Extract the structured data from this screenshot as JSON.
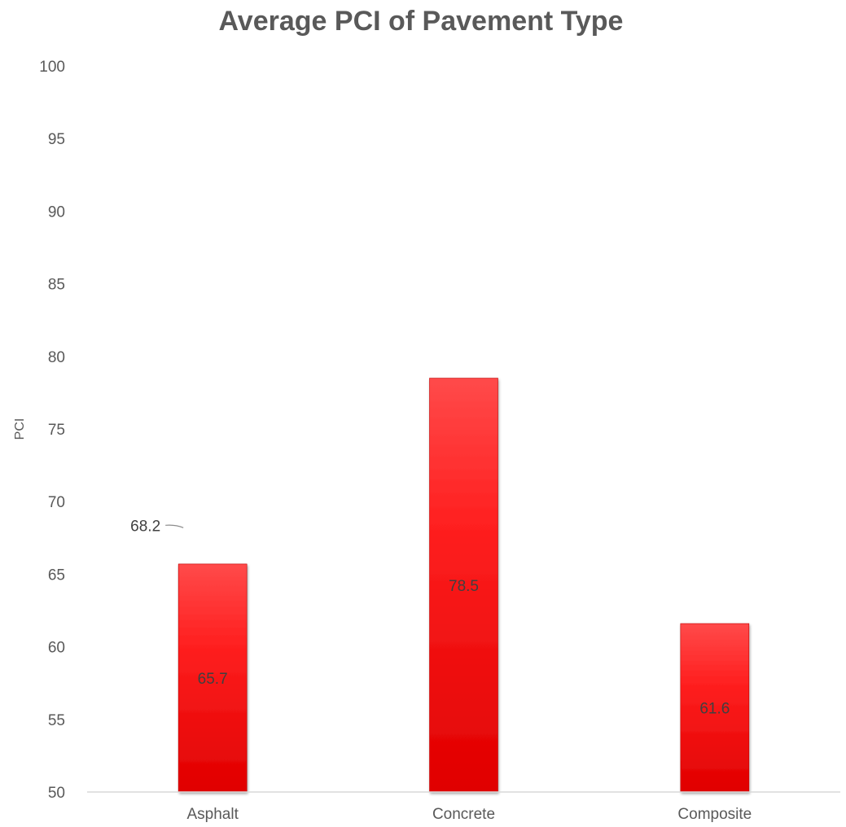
{
  "chart_data": {
    "type": "bar",
    "title": "Average PCI of Pavement Type",
    "xlabel": "",
    "ylabel": "PCI",
    "ylim": [
      50,
      100
    ],
    "ytick_step": 5,
    "categories": [
      "Asphalt",
      "Concrete",
      "Composite"
    ],
    "series": [
      {
        "values": [
          65.7,
          78.5,
          61.6
        ],
        "color": "#ff1a1a"
      }
    ],
    "data_labels": [
      "65.7",
      "78.5",
      "61.6"
    ],
    "average_line": {
      "value": 68.2,
      "label": "68.2",
      "color": "#2e7fc4"
    },
    "grid": false,
    "legend": "none"
  }
}
